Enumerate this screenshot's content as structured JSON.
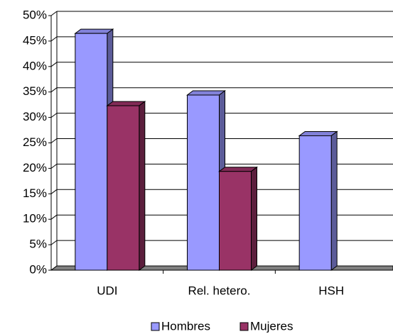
{
  "chart_data": {
    "type": "bar3d",
    "categories": [
      "UDI",
      "Rel. hetero.",
      "HSH"
    ],
    "series": [
      {
        "name": "Hombres",
        "color": "#9999ff",
        "values": [
          46.5,
          34.4,
          26.4
        ]
      },
      {
        "name": "Mujeres",
        "color": "#993366",
        "values": [
          32.3,
          19.4,
          null
        ]
      }
    ],
    "ylim": [
      0,
      50
    ],
    "yticks": [
      {
        "value": 0,
        "label": "0%"
      },
      {
        "value": 5,
        "label": "5%"
      },
      {
        "value": 10,
        "label": "10%"
      },
      {
        "value": 15,
        "label": "15%"
      },
      {
        "value": 20,
        "label": "20%"
      },
      {
        "value": 25,
        "label": "25%"
      },
      {
        "value": 30,
        "label": "30%"
      },
      {
        "value": 35,
        "label": "35%"
      },
      {
        "value": 40,
        "label": "40%"
      },
      {
        "value": 45,
        "label": "45%"
      },
      {
        "value": 50,
        "label": "50%"
      }
    ],
    "grid": true
  }
}
